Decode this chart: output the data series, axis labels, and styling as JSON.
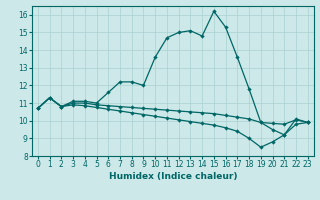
{
  "xlabel": "Humidex (Indice chaleur)",
  "xlim": [
    -0.5,
    23.5
  ],
  "ylim": [
    8,
    16.5
  ],
  "yticks": [
    8,
    9,
    10,
    11,
    12,
    13,
    14,
    15,
    16
  ],
  "xticks": [
    0,
    1,
    2,
    3,
    4,
    5,
    6,
    7,
    8,
    9,
    10,
    11,
    12,
    13,
    14,
    15,
    16,
    17,
    18,
    19,
    20,
    21,
    22,
    23
  ],
  "background_color": "#cce8e8",
  "grid_color": "#aad0d0",
  "line_color": "#006666",
  "line1_x": [
    0,
    1,
    2,
    3,
    4,
    5,
    6,
    7,
    8,
    9,
    10,
    11,
    12,
    13,
    14,
    15,
    16,
    17,
    18,
    19,
    20,
    21,
    22,
    23
  ],
  "line1_y": [
    10.7,
    11.3,
    10.8,
    11.1,
    11.1,
    11.0,
    11.6,
    12.2,
    12.2,
    12.0,
    13.6,
    14.7,
    15.0,
    15.1,
    14.8,
    16.2,
    15.3,
    13.6,
    11.8,
    9.9,
    9.5,
    9.2,
    10.1,
    9.9
  ],
  "line2_x": [
    0,
    1,
    2,
    3,
    4,
    5,
    6,
    7,
    8,
    9,
    10,
    11,
    12,
    13,
    14,
    15,
    16,
    17,
    18,
    19,
    20,
    21,
    22,
    23
  ],
  "line2_y": [
    10.7,
    11.3,
    10.8,
    11.0,
    11.0,
    10.9,
    10.85,
    10.8,
    10.75,
    10.7,
    10.65,
    10.6,
    10.55,
    10.5,
    10.45,
    10.4,
    10.3,
    10.2,
    10.1,
    9.9,
    9.85,
    9.8,
    10.05,
    9.9
  ],
  "line3_x": [
    0,
    1,
    2,
    3,
    4,
    5,
    6,
    7,
    8,
    9,
    10,
    11,
    12,
    13,
    14,
    15,
    16,
    17,
    18,
    19,
    20,
    21,
    22,
    23
  ],
  "line3_y": [
    10.7,
    11.3,
    10.8,
    10.9,
    10.85,
    10.75,
    10.65,
    10.55,
    10.45,
    10.35,
    10.25,
    10.15,
    10.05,
    9.95,
    9.85,
    9.75,
    9.6,
    9.4,
    9.0,
    8.5,
    8.8,
    9.2,
    9.8,
    9.9
  ]
}
